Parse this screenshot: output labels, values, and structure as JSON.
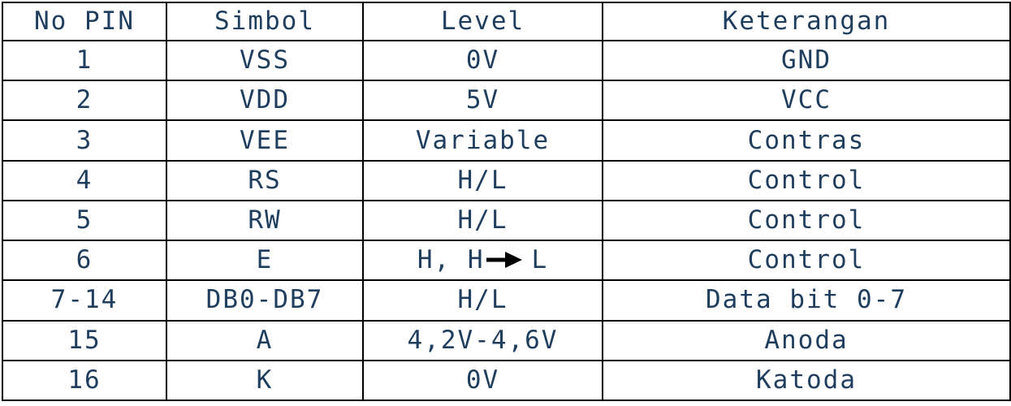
{
  "table": {
    "headers": [
      "No PIN",
      "Simbol",
      "Level",
      "Keterangan"
    ],
    "rows": [
      {
        "pin": "1",
        "symbol": "VSS",
        "level": "0V",
        "description": "GND"
      },
      {
        "pin": "2",
        "symbol": "VDD",
        "level": "5V",
        "description": "VCC"
      },
      {
        "pin": "3",
        "symbol": "VEE",
        "level": "Variable",
        "description": "Contras"
      },
      {
        "pin": "4",
        "symbol": "RS",
        "level": "H/L",
        "description": "Control"
      },
      {
        "pin": "5",
        "symbol": "RW",
        "level": "H/L",
        "description": "Control"
      },
      {
        "pin": "6",
        "symbol": "E",
        "level": {
          "before": "H, H",
          "icon": "right-arrow-icon",
          "after": "L"
        },
        "description": "Control"
      },
      {
        "pin": "7-14",
        "symbol": "DB0-DB7",
        "level": "H/L",
        "description": "Data bit 0-7"
      },
      {
        "pin": "15",
        "symbol": "A",
        "level": "4,2V-4,6V",
        "description": "Anoda"
      },
      {
        "pin": "16",
        "symbol": "K",
        "level": "0V",
        "description": "Katoda"
      }
    ]
  },
  "colors": {
    "text": "#1f3e5e",
    "border": "#000000",
    "background": "#ffffff"
  }
}
